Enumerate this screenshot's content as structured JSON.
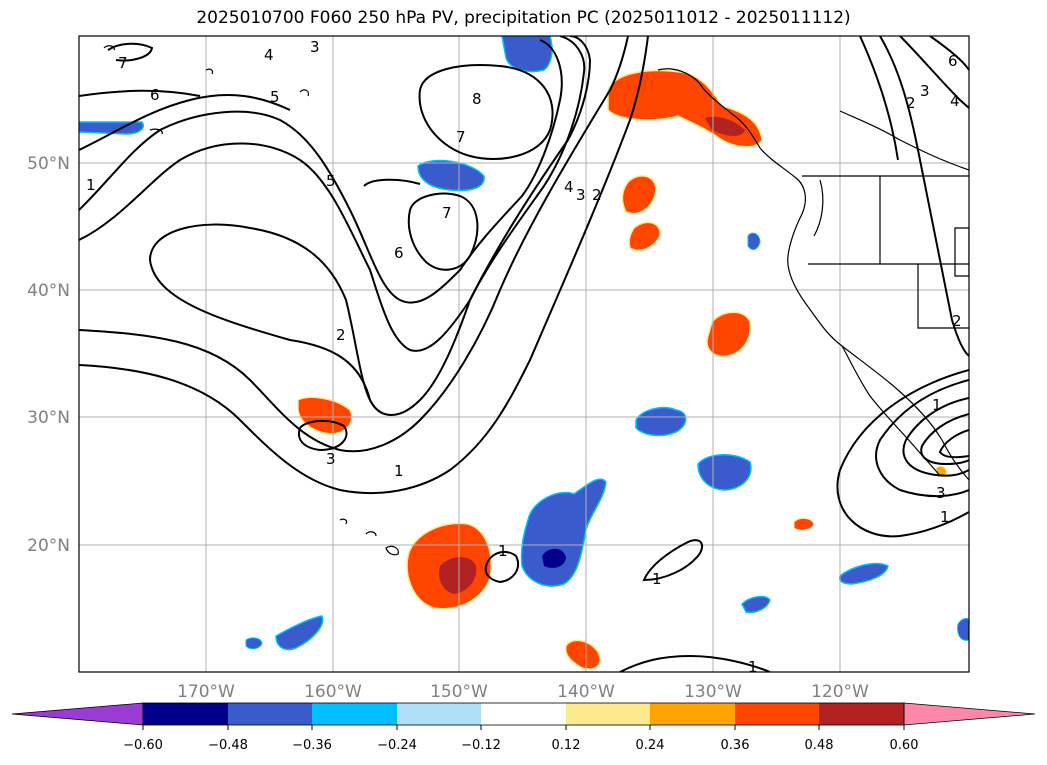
{
  "title": "2025010700 F060 250 hPa PV, precipitation PC (2025011012 - 2025011112)",
  "axes": {
    "lat_labels": [
      "50°N",
      "40°N",
      "30°N",
      "20°N"
    ],
    "lon_labels": [
      "170°W",
      "160°W",
      "150°W",
      "140°W",
      "130°W",
      "120°W"
    ]
  },
  "colorbar": {
    "colors": [
      "#9b3bd6",
      "#00008b",
      "#3a5bcc",
      "#00bfff",
      "#b0e0f8",
      "#ffffff",
      "#fde98e",
      "#ffa500",
      "#ff4500",
      "#b22222",
      "#ff88aa"
    ],
    "ticks": [
      "−0.60",
      "−0.48",
      "−0.36",
      "−0.24",
      "−0.12",
      "0.12",
      "0.24",
      "0.36",
      "0.48",
      "0.60"
    ]
  },
  "contour_labels": [
    "7",
    "6",
    "5",
    "4",
    "3",
    "8",
    "7",
    "5",
    "7",
    "6",
    "2",
    "4",
    "3",
    "2",
    "3",
    "1",
    "1",
    "1",
    "1",
    "1",
    "6",
    "3",
    "2",
    "4",
    "2",
    "3",
    "1",
    "1"
  ]
}
